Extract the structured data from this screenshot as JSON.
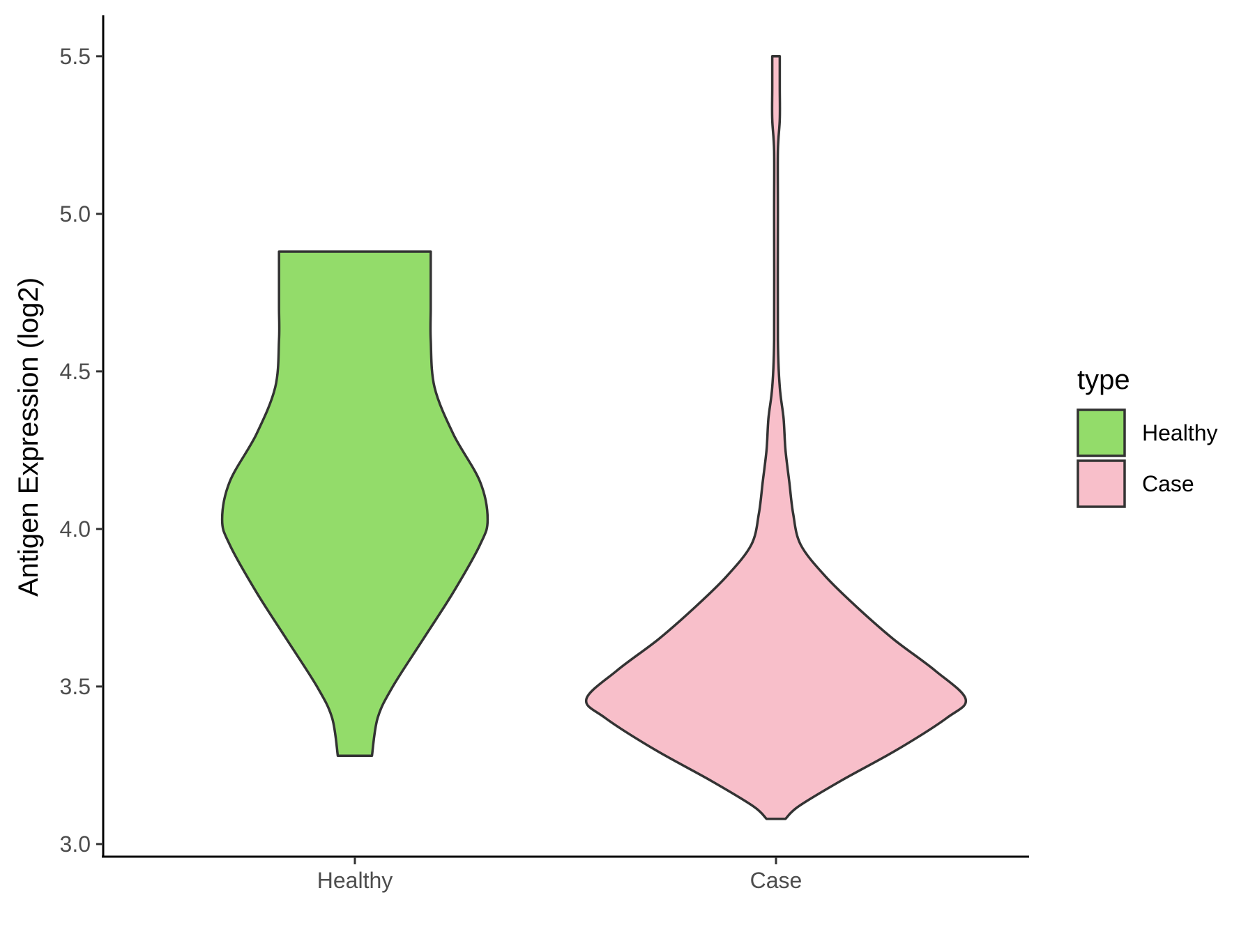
{
  "chart_data": {
    "type": "violin",
    "ylabel": "Antigen Expression (log2)",
    "xlabel": "",
    "ylim": [
      2.96,
      5.63
    ],
    "yticks": [
      "3.0",
      "3.5",
      "4.0",
      "4.5",
      "5.0",
      "5.5"
    ],
    "categories": [
      "Healthy",
      "Case"
    ],
    "legend": {
      "title": "type",
      "position": "right",
      "items": [
        {
          "label": "Healthy",
          "color": "#93dc6a"
        },
        {
          "label": "Case",
          "color": "#f8bfca"
        }
      ]
    },
    "series": [
      {
        "name": "Healthy",
        "color": "#93dc6a",
        "min": 3.28,
        "max": 4.88,
        "density": [
          [
            3.28,
            0.09
          ],
          [
            3.4,
            0.12
          ],
          [
            3.5,
            0.2
          ],
          [
            3.65,
            0.36
          ],
          [
            3.8,
            0.52
          ],
          [
            3.95,
            0.66
          ],
          [
            4.03,
            0.7
          ],
          [
            4.15,
            0.66
          ],
          [
            4.3,
            0.52
          ],
          [
            4.45,
            0.42
          ],
          [
            4.6,
            0.4
          ],
          [
            4.7,
            0.4
          ],
          [
            4.8,
            0.4
          ],
          [
            4.88,
            0.4
          ]
        ]
      },
      {
        "name": "Case",
        "color": "#f8bfca",
        "min": 3.08,
        "max": 5.5,
        "density": [
          [
            3.08,
            0.05
          ],
          [
            3.12,
            0.12
          ],
          [
            3.2,
            0.34
          ],
          [
            3.3,
            0.64
          ],
          [
            3.4,
            0.9
          ],
          [
            3.46,
            1.0
          ],
          [
            3.55,
            0.84
          ],
          [
            3.65,
            0.62
          ],
          [
            3.75,
            0.43
          ],
          [
            3.85,
            0.26
          ],
          [
            3.95,
            0.13
          ],
          [
            4.05,
            0.09
          ],
          [
            4.15,
            0.07
          ],
          [
            4.25,
            0.05
          ],
          [
            4.35,
            0.04
          ],
          [
            4.45,
            0.02
          ],
          [
            4.6,
            0.01
          ],
          [
            5.0,
            0.01
          ],
          [
            5.2,
            0.01
          ],
          [
            5.3,
            0.02
          ],
          [
            5.4,
            0.02
          ],
          [
            5.5,
            0.02
          ]
        ]
      }
    ]
  }
}
